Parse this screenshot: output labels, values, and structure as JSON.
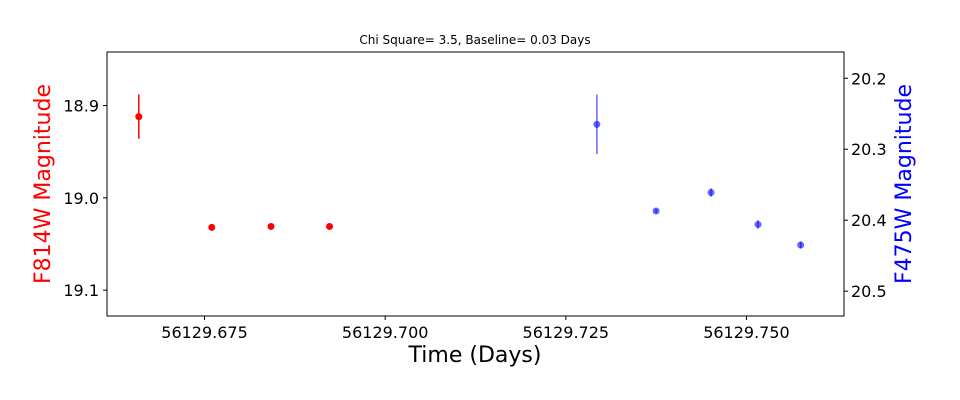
{
  "chart_data": {
    "type": "scatter",
    "title": "Chi Square= 3.5, Baseline= 0.03 Days",
    "xlabel": "Time (Days)",
    "xlim": [
      56129.6615,
      56129.7635
    ],
    "xticks": [
      56129.675,
      56129.7,
      56129.725,
      56129.75
    ],
    "xtick_labels": [
      "56129.675",
      "56129.700",
      "56129.725",
      "56129.750"
    ],
    "y_left": {
      "label": "F814W Magnitude",
      "color": "#ff0000",
      "ylim": [
        18.842,
        19.128
      ],
      "inverted": true,
      "ticks": [
        18.9,
        19.0,
        19.1
      ],
      "tick_labels": [
        "18.9",
        "19.0",
        "19.1"
      ]
    },
    "y_right": {
      "label": "F475W Magnitude",
      "color": "#0000ff",
      "ylim": [
        20.163,
        20.535
      ],
      "inverted": true,
      "ticks": [
        20.2,
        20.3,
        20.4,
        20.5
      ],
      "tick_labels": [
        "20.2",
        "20.3",
        "20.4",
        "20.5"
      ]
    },
    "series": [
      {
        "axis": "left",
        "color": "#ff0000",
        "points": [
          {
            "x": 56129.6659,
            "y": 18.912,
            "err": 0.024
          },
          {
            "x": 56129.676,
            "y": 19.032,
            "err": 0.003
          },
          {
            "x": 56129.6842,
            "y": 19.031,
            "err": 0.002
          },
          {
            "x": 56129.6923,
            "y": 19.031,
            "err": 0.003
          }
        ]
      },
      {
        "axis": "right",
        "color": "#0000ff",
        "points": [
          {
            "x": 56129.7293,
            "y": 20.265,
            "err": 0.042
          },
          {
            "x": 56129.7375,
            "y": 20.387,
            "err": 0.003
          },
          {
            "x": 56129.7451,
            "y": 20.361,
            "err": 0.006
          },
          {
            "x": 56129.7516,
            "y": 20.406,
            "err": 0.006
          },
          {
            "x": 56129.7575,
            "y": 20.435,
            "err": 0.005
          }
        ]
      }
    ],
    "grid": false,
    "legend": "none"
  }
}
